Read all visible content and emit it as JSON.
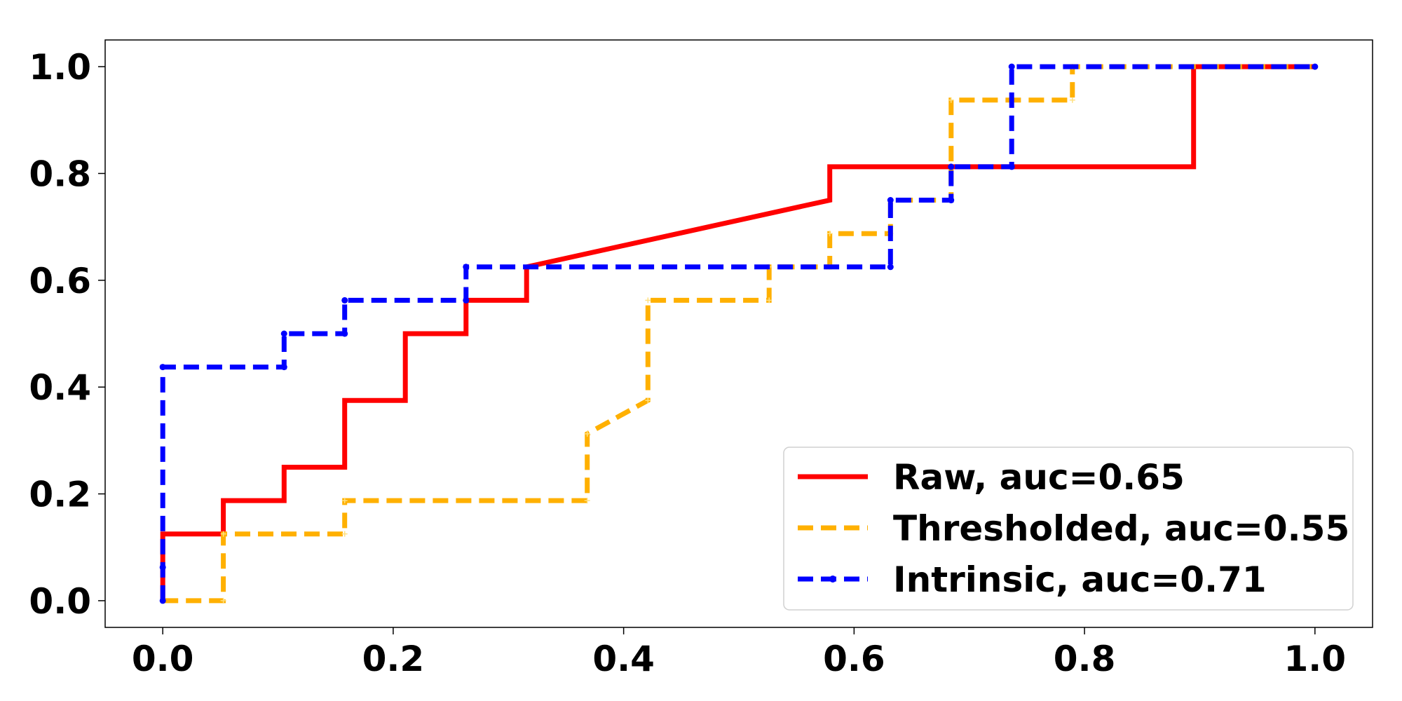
{
  "chart_data": {
    "type": "line",
    "title": "",
    "xlabel": "",
    "ylabel": "",
    "xlim": [
      -0.05,
      1.05
    ],
    "ylim": [
      -0.05,
      1.05
    ],
    "x_ticks": [
      "0.0",
      "0.2",
      "0.4",
      "0.6",
      "0.8",
      "1.0"
    ],
    "y_ticks": [
      "0.0",
      "0.2",
      "0.4",
      "0.6",
      "0.8",
      "1.0"
    ],
    "grid": false,
    "legend_position": "lower-right",
    "series": [
      {
        "name": "Raw, auc=0.65",
        "color": "#ff0000",
        "style": "solid",
        "marker": "none",
        "points": [
          [
            0,
            0
          ],
          [
            0,
            0.125
          ],
          [
            0.0526,
            0.125
          ],
          [
            0.0526,
            0.1875
          ],
          [
            0.1053,
            0.1875
          ],
          [
            0.1053,
            0.25
          ],
          [
            0.1579,
            0.25
          ],
          [
            0.1579,
            0.375
          ],
          [
            0.2105,
            0.375
          ],
          [
            0.2105,
            0.5
          ],
          [
            0.2632,
            0.5
          ],
          [
            0.2632,
            0.5625
          ],
          [
            0.3158,
            0.5625
          ],
          [
            0.3158,
            0.625
          ],
          [
            0.5789,
            0.75
          ],
          [
            0.5789,
            0.8125
          ],
          [
            0.8947,
            0.8125
          ],
          [
            0.8947,
            1.0
          ],
          [
            1.0,
            1.0
          ]
        ]
      },
      {
        "name": "Thresholded, auc=0.55",
        "color": "#ffb000",
        "style": "dashed",
        "marker": "plus",
        "points": [
          [
            0,
            0
          ],
          [
            0.0526,
            0
          ],
          [
            0.0526,
            0.125
          ],
          [
            0.1579,
            0.125
          ],
          [
            0.1579,
            0.1875
          ],
          [
            0.3684,
            0.1875
          ],
          [
            0.3684,
            0.3125
          ],
          [
            0.4211,
            0.375
          ],
          [
            0.4211,
            0.5625
          ],
          [
            0.5263,
            0.5625
          ],
          [
            0.5263,
            0.625
          ],
          [
            0.5789,
            0.625
          ],
          [
            0.5789,
            0.6875
          ],
          [
            0.6316,
            0.6875
          ],
          [
            0.6316,
            0.75
          ],
          [
            0.6842,
            0.75
          ],
          [
            0.6842,
            0.9375
          ],
          [
            0.7895,
            0.9375
          ],
          [
            0.7895,
            1.0
          ],
          [
            1.0,
            1.0
          ]
        ]
      },
      {
        "name": "Intrinsic, auc=0.71",
        "color": "#0000ff",
        "style": "dashed",
        "marker": "dot",
        "points": [
          [
            0,
            0
          ],
          [
            0,
            0.0625
          ],
          [
            0,
            0.4375
          ],
          [
            0.1053,
            0.4375
          ],
          [
            0.1053,
            0.5
          ],
          [
            0.1579,
            0.5
          ],
          [
            0.1579,
            0.5625
          ],
          [
            0.2632,
            0.5625
          ],
          [
            0.2632,
            0.625
          ],
          [
            0.6316,
            0.625
          ],
          [
            0.6316,
            0.75
          ],
          [
            0.6842,
            0.75
          ],
          [
            0.6842,
            0.8125
          ],
          [
            0.7368,
            0.8125
          ],
          [
            0.7368,
            1.0
          ],
          [
            1.0,
            1.0
          ]
        ]
      }
    ]
  }
}
